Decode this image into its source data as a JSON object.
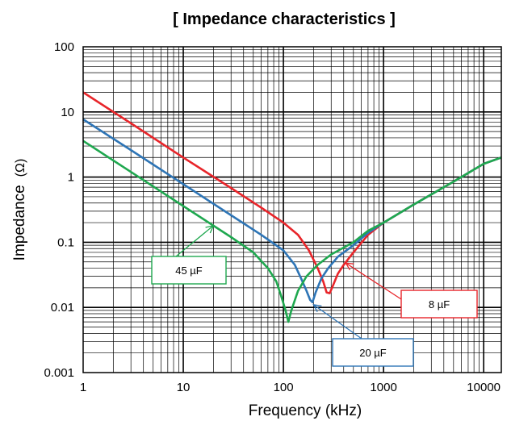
{
  "chart_data": {
    "type": "line",
    "title": "[ Impedance characteristics ]",
    "xlabel": "Frequency (kHz)",
    "ylabel": "Impedance",
    "ylabel_unit": "(Ω)",
    "x_scale": "log",
    "y_scale": "log",
    "xlim": [
      1,
      15000
    ],
    "ylim": [
      0.001,
      100
    ],
    "x_ticks": [
      1,
      10,
      100,
      1000,
      10000
    ],
    "x_tick_labels": [
      "1",
      "10",
      "100",
      "1000",
      "10000"
    ],
    "y_ticks": [
      0.001,
      0.01,
      0.1,
      1,
      10,
      100
    ],
    "y_tick_labels": [
      "0.001",
      "0.01",
      "0.1",
      "1",
      "10",
      "100"
    ],
    "grid": true,
    "series": [
      {
        "name": "8 µF",
        "color": "#e8252a",
        "points": [
          [
            1,
            20
          ],
          [
            3,
            6.7
          ],
          [
            10,
            2
          ],
          [
            30,
            0.68
          ],
          [
            60,
            0.34
          ],
          [
            100,
            0.2
          ],
          [
            140,
            0.13
          ],
          [
            180,
            0.075
          ],
          [
            220,
            0.04
          ],
          [
            250,
            0.025
          ],
          [
            270,
            0.017
          ],
          [
            290,
            0.0165
          ],
          [
            310,
            0.021
          ],
          [
            350,
            0.033
          ],
          [
            400,
            0.045
          ],
          [
            500,
            0.07
          ],
          [
            700,
            0.13
          ],
          [
            1000,
            0.2
          ],
          [
            2000,
            0.38
          ],
          [
            5000,
            0.85
          ],
          [
            10000,
            1.6
          ],
          [
            15000,
            2.0
          ]
        ]
      },
      {
        "name": "20 µF",
        "color": "#2e75b6",
        "points": [
          [
            1,
            7.7
          ],
          [
            3,
            2.6
          ],
          [
            10,
            0.78
          ],
          [
            30,
            0.26
          ],
          [
            60,
            0.13
          ],
          [
            100,
            0.075
          ],
          [
            130,
            0.045
          ],
          [
            150,
            0.028
          ],
          [
            170,
            0.018
          ],
          [
            185,
            0.013
          ],
          [
            195,
            0.012
          ],
          [
            210,
            0.017
          ],
          [
            240,
            0.028
          ],
          [
            280,
            0.04
          ],
          [
            350,
            0.06
          ],
          [
            500,
            0.09
          ],
          [
            700,
            0.14
          ],
          [
            1000,
            0.2
          ],
          [
            2000,
            0.38
          ],
          [
            5000,
            0.85
          ],
          [
            10000,
            1.6
          ],
          [
            15000,
            2.0
          ]
        ]
      },
      {
        "name": "45 µF",
        "color": "#1fa84f",
        "points": [
          [
            1,
            3.6
          ],
          [
            3,
            1.2
          ],
          [
            10,
            0.36
          ],
          [
            30,
            0.12
          ],
          [
            50,
            0.07
          ],
          [
            70,
            0.04
          ],
          [
            85,
            0.025
          ],
          [
            95,
            0.015
          ],
          [
            105,
            0.009
          ],
          [
            112,
            0.006
          ],
          [
            120,
            0.009
          ],
          [
            140,
            0.018
          ],
          [
            170,
            0.03
          ],
          [
            220,
            0.045
          ],
          [
            300,
            0.065
          ],
          [
            500,
            0.1
          ],
          [
            700,
            0.15
          ],
          [
            1000,
            0.2
          ],
          [
            2000,
            0.38
          ],
          [
            5000,
            0.85
          ],
          [
            10000,
            1.6
          ],
          [
            15000,
            2.0
          ]
        ]
      }
    ],
    "annotations": [
      {
        "text": "45 µF",
        "series": 2,
        "x": 20,
        "y": 0.18
      },
      {
        "text": "20 µF",
        "series": 1,
        "x": 200,
        "y": 0.011
      },
      {
        "text": "8 µF",
        "series": 0,
        "x": 420,
        "y": 0.048
      }
    ]
  }
}
